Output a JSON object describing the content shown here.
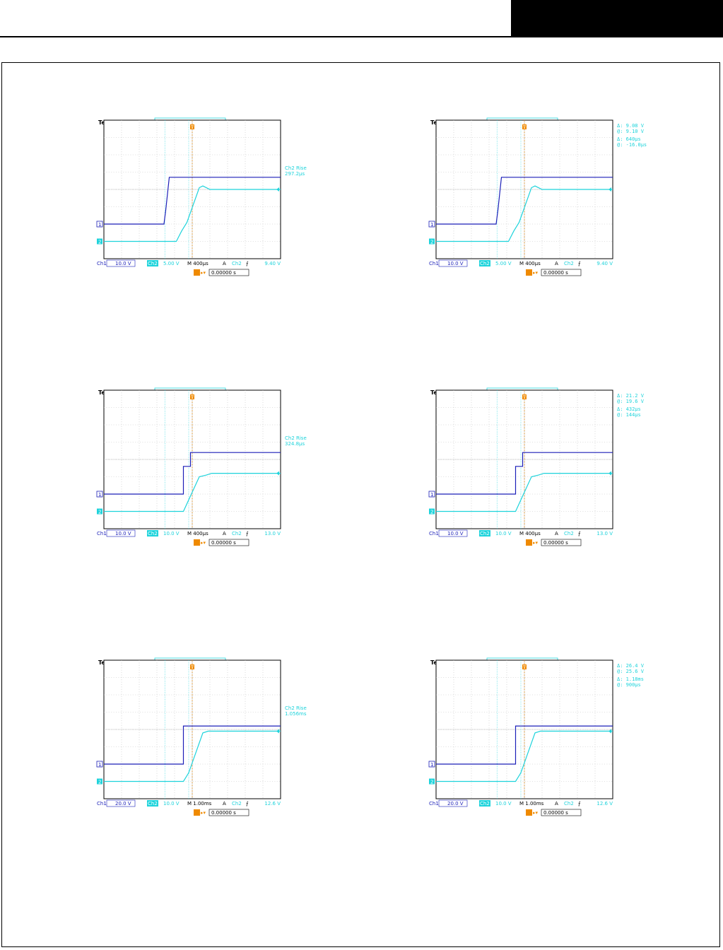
{
  "colors": {
    "ch1": "#1b1fb8",
    "ch2": "#1ed3db",
    "trigger": "#ef8a00",
    "grid": "#bfbfbf",
    "frame": "#000000"
  },
  "scopes": [
    {
      "brand": "Tek",
      "state": "Stop",
      "readout": [
        "Ch2 Rise",
        "297.2μs"
      ],
      "cursor_readout": null,
      "status": {
        "ch1_label": "Ch1",
        "ch1_scale": "10.0 V",
        "ch2_label": "Ch2",
        "ch2_scale": "5.00 V",
        "timebase": "M 400μs",
        "trig_mode": "A",
        "trig_src": "Ch2",
        "trig_slope": "⨍",
        "trig_level": "9.40 V"
      },
      "trigger_time": "0.00000 s"
    },
    {
      "brand": "Tek",
      "state": "Stop",
      "readout": null,
      "cursor_readout": [
        "Δ:   9.08 V",
        "@:   9.10 V",
        "Δ:   640μs",
        "@:  -16.0μs"
      ],
      "status": {
        "ch1_label": "Ch1",
        "ch1_scale": "10.0 V",
        "ch2_label": "Ch2",
        "ch2_scale": "5.00 V",
        "timebase": "M 400μs",
        "trig_mode": "A",
        "trig_src": "Ch2",
        "trig_slope": "⨍",
        "trig_level": "9.40 V"
      },
      "trigger_time": "0.00000 s"
    },
    {
      "brand": "Tek",
      "state": "Stop",
      "readout": [
        "Ch2 Rise",
        "324.8μs"
      ],
      "cursor_readout": null,
      "status": {
        "ch1_label": "Ch1",
        "ch1_scale": "10.0 V",
        "ch2_label": "Ch2",
        "ch2_scale": "10.0 V",
        "timebase": "M 400μs",
        "trig_mode": "A",
        "trig_src": "Ch2",
        "trig_slope": "⨍",
        "trig_level": "13.0 V"
      },
      "trigger_time": "0.00000 s"
    },
    {
      "brand": "Tek",
      "state": "Stop",
      "readout": null,
      "cursor_readout": [
        "Δ:   21.2 V",
        "@:   19.6 V",
        "Δ:   432μs",
        "@:   144μs"
      ],
      "status": {
        "ch1_label": "Ch1",
        "ch1_scale": "10.0 V",
        "ch2_label": "Ch2",
        "ch2_scale": "10.0 V",
        "timebase": "M 400μs",
        "trig_mode": "A",
        "trig_src": "Ch2",
        "trig_slope": "⨍",
        "trig_level": "13.0 V"
      },
      "trigger_time": "0.00000 s"
    },
    {
      "brand": "Tek",
      "state": "Stop",
      "readout": [
        "Ch2 Rise",
        "1.056ms"
      ],
      "cursor_readout": null,
      "status": {
        "ch1_label": "Ch1",
        "ch1_scale": "20.0 V",
        "ch2_label": "Ch2",
        "ch2_scale": "10.0 V",
        "timebase": "M 1.00ms",
        "trig_mode": "A",
        "trig_src": "Ch2",
        "trig_slope": "⨍",
        "trig_level": "12.6 V"
      },
      "trigger_time": "0.00000 s"
    },
    {
      "brand": "Tek",
      "state": "Stop",
      "readout": null,
      "cursor_readout": [
        "Δ:   26.4 V",
        "@:   25.6 V",
        "Δ:   1.18ms",
        "@:   900μs"
      ],
      "status": {
        "ch1_label": "Ch1",
        "ch1_scale": "20.0 V",
        "ch2_label": "Ch2",
        "ch2_scale": "10.0 V",
        "timebase": "M 1.00ms",
        "trig_mode": "A",
        "trig_src": "Ch2",
        "trig_slope": "⨍",
        "trig_level": "12.6 V"
      },
      "trigger_time": "0.00000 s"
    }
  ],
  "chart_data": [
    {
      "type": "line",
      "grid": true,
      "x_unit": "div",
      "y_unit": "div",
      "xlim": [
        -5,
        5
      ],
      "ylim": [
        -4,
        4
      ],
      "series": [
        {
          "name": "Ch1",
          "x": [
            -5,
            -1.6,
            -1.5,
            -1.3,
            5
          ],
          "y": [
            -2.0,
            -2.0,
            -1.2,
            0.7,
            0.7
          ]
        },
        {
          "name": "Ch2",
          "x": [
            -5,
            -0.9,
            -0.6,
            -0.3,
            0.4,
            0.6,
            1.0,
            5
          ],
          "y": [
            -3.0,
            -3.0,
            -2.4,
            -1.9,
            0.1,
            0.2,
            0.0,
            0.0
          ]
        }
      ]
    },
    {
      "type": "line",
      "grid": true,
      "x_unit": "div",
      "y_unit": "div",
      "xlim": [
        -5,
        5
      ],
      "ylim": [
        -4,
        4
      ],
      "series": [
        {
          "name": "Ch1",
          "x": [
            -5,
            -1.6,
            -1.5,
            -1.3,
            5
          ],
          "y": [
            -2.0,
            -2.0,
            -1.2,
            0.7,
            0.7
          ]
        },
        {
          "name": "Ch2",
          "x": [
            -5,
            -0.9,
            -0.6,
            -0.3,
            0.4,
            0.6,
            1.0,
            5
          ],
          "y": [
            -3.0,
            -3.0,
            -2.4,
            -1.9,
            0.1,
            0.2,
            0.0,
            0.0
          ]
        }
      ]
    },
    {
      "type": "line",
      "grid": true,
      "x_unit": "div",
      "y_unit": "div",
      "xlim": [
        -5,
        5
      ],
      "ylim": [
        -4,
        4
      ],
      "series": [
        {
          "name": "Ch1",
          "x": [
            -5,
            -0.5,
            -0.5,
            -0.3,
            -0.1,
            -0.1,
            5
          ],
          "y": [
            -2.0,
            -2.0,
            -0.4,
            -0.4,
            -0.4,
            0.4,
            0.4
          ]
        },
        {
          "name": "Ch2",
          "x": [
            -5,
            -0.5,
            0.4,
            0.8,
            1.1,
            5
          ],
          "y": [
            -3.0,
            -3.0,
            -1.0,
            -0.9,
            -0.8,
            -0.8
          ]
        }
      ]
    },
    {
      "type": "line",
      "grid": true,
      "x_unit": "div",
      "y_unit": "div",
      "xlim": [
        -5,
        5
      ],
      "ylim": [
        -4,
        4
      ],
      "series": [
        {
          "name": "Ch1",
          "x": [
            -5,
            -0.5,
            -0.5,
            -0.3,
            -0.1,
            -0.1,
            5
          ],
          "y": [
            -2.0,
            -2.0,
            -0.4,
            -0.4,
            -0.4,
            0.4,
            0.4
          ]
        },
        {
          "name": "Ch2",
          "x": [
            -5,
            -0.5,
            0.4,
            0.8,
            1.1,
            5
          ],
          "y": [
            -3.0,
            -3.0,
            -1.0,
            -0.9,
            -0.8,
            -0.8
          ]
        }
      ]
    },
    {
      "type": "line",
      "grid": true,
      "x_unit": "div",
      "y_unit": "div",
      "xlim": [
        -5,
        5
      ],
      "ylim": [
        -4,
        4
      ],
      "series": [
        {
          "name": "Ch1",
          "x": [
            -5,
            -0.5,
            -0.5,
            5
          ],
          "y": [
            -2.0,
            -2.0,
            0.2,
            0.2
          ]
        },
        {
          "name": "Ch2",
          "x": [
            -5,
            -0.5,
            -0.2,
            0.6,
            0.9,
            5
          ],
          "y": [
            -3.0,
            -3.0,
            -2.5,
            -0.2,
            -0.1,
            -0.1
          ]
        }
      ]
    },
    {
      "type": "line",
      "grid": true,
      "x_unit": "div",
      "y_unit": "div",
      "xlim": [
        -5,
        5
      ],
      "ylim": [
        -4,
        4
      ],
      "series": [
        {
          "name": "Ch1",
          "x": [
            -5,
            -0.5,
            -0.5,
            5
          ],
          "y": [
            -2.0,
            -2.0,
            0.2,
            0.2
          ]
        },
        {
          "name": "Ch2",
          "x": [
            -5,
            -0.5,
            -0.2,
            0.6,
            0.9,
            5
          ],
          "y": [
            -3.0,
            -3.0,
            -2.5,
            -0.2,
            -0.1,
            -0.1
          ]
        }
      ]
    }
  ]
}
